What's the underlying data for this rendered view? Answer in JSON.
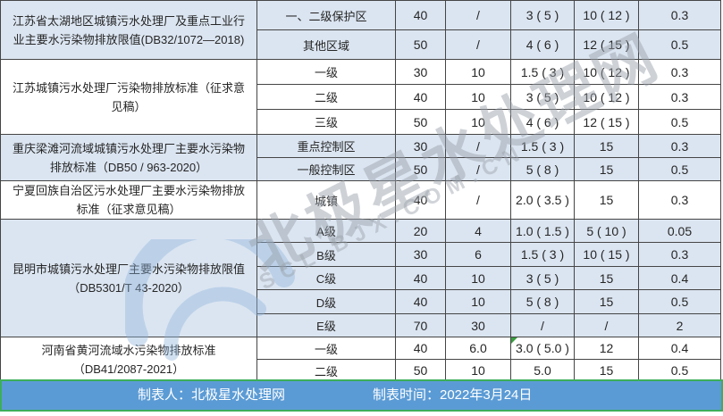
{
  "table": {
    "value_slash": "/",
    "groups": [
      {
        "standard": "江苏省太湖地区城镇污水处理厂及重点工业行业主要水污染物排放限值(DB32/1072—2018)",
        "shade": "blue",
        "rows": [
          {
            "region": "一、二级保护区",
            "values": [
              "40",
              "/",
              "3 ( 5 )",
              "10 ( 12 )",
              "0.3"
            ]
          },
          {
            "region": "其他区域",
            "values": [
              "50",
              "/",
              "4 ( 6 )",
              "12 ( 15 )",
              "0.5"
            ]
          }
        ]
      },
      {
        "standard": "江苏城镇污水处理厂污染物排放标准（征求意见稿）",
        "shade": "white",
        "rows": [
          {
            "region": "一级",
            "values": [
              "30",
              "10",
              "1.5 ( 3 )",
              "10 ( 12 )",
              "0.3"
            ]
          },
          {
            "region": "二级",
            "values": [
              "40",
              "10",
              "3 ( 5 )",
              "10 ( 12 )",
              "0.3"
            ]
          },
          {
            "region": "三级",
            "values": [
              "50",
              "10",
              "4 ( 6 )",
              "12 ( 15 )",
              "0.5"
            ]
          }
        ]
      },
      {
        "standard": "重庆梁滩河流域城镇污水处理厂主要水污染物排放标准（DB50 / 963-2020）",
        "shade": "blue",
        "rows": [
          {
            "region": "重点控制区",
            "values": [
              "30",
              "/",
              "1.5 ( 3 )",
              "15",
              "0.3"
            ]
          },
          {
            "region": "一般控制区",
            "values": [
              "50",
              "/",
              "5 ( 8 )",
              "15",
              "0.5"
            ]
          }
        ]
      },
      {
        "standard": "宁夏回族自治区污水处理厂主要水污染物排放标准（征求意见稿）",
        "shade": "white",
        "rows": [
          {
            "region": "城镇",
            "values": [
              "40",
              "/",
              "2.0 ( 3.5 )",
              "15",
              "0.3"
            ]
          }
        ]
      },
      {
        "standard": "昆明市城镇污水处理厂主要水污染物排放限值（DB5301/T 43-2020）",
        "shade": "blue",
        "rows": [
          {
            "region": "A级",
            "values": [
              "20",
              "4",
              "1.0 ( 1.5 )",
              "5 ( 10 )",
              "0.05"
            ]
          },
          {
            "region": "B级",
            "values": [
              "30",
              "6",
              "1.5 ( 3 )",
              "10 ( 15 )",
              "0.3"
            ]
          },
          {
            "region": "C级",
            "values": [
              "40",
              "10",
              "3 ( 5 )",
              "15",
              "0.4"
            ]
          },
          {
            "region": "D级",
            "values": [
              "40",
              "10",
              "5 ( 8 )",
              "15",
              "0.5"
            ]
          },
          {
            "region": "E级",
            "values": [
              "70",
              "30",
              "/",
              "/",
              "2"
            ]
          }
        ]
      },
      {
        "standard": "河南省黄河流域水污染物排放标准（DB41/2087-2021）",
        "shade": "white",
        "rows": [
          {
            "region": "一级",
            "values": [
              "40",
              "6.0",
              "3.0 ( 5.0 )",
              "12",
              "0.4"
            ],
            "flag": 2
          },
          {
            "region": "二级",
            "values": [
              "50",
              "10",
              "5.0",
              "15",
              "0.5"
            ]
          }
        ]
      }
    ]
  },
  "footer": {
    "creator": "制表人：北极星水处理网",
    "date": "制表时间：2022年3月24日"
  },
  "watermark": {
    "text": "北极星水处理网",
    "subtext": "SCL.BJX.COM.CN",
    "logo": "bjx-star-logo"
  },
  "colors": {
    "row_blue": "#dbe5f1",
    "row_white": "#ffffff",
    "border": "#454545",
    "footer_bg": "#5b9bd5",
    "footer_border": "#3dae5b",
    "footer_text": "#ffffff",
    "text": "#262626",
    "watermark": "#9aa2ab",
    "logo_blue": "#8fb4dc",
    "flag_green": "#3a9e41"
  }
}
